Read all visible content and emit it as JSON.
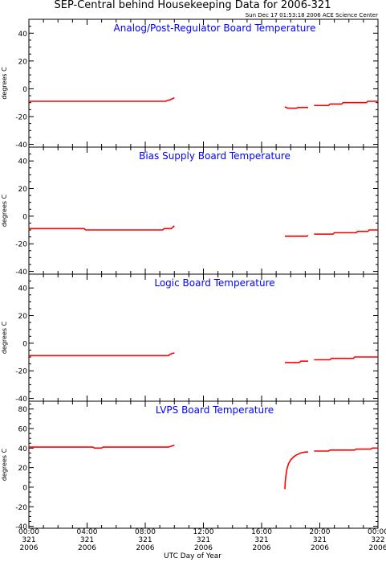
{
  "title": "SEP-Central behind Housekeeping Data for 2006-321",
  "timestamp": "Sun Dec 17 01:53:18 2006 ACE Science Center",
  "xlabel": "UTC Day of Year",
  "colors": {
    "trace": "#ff0000",
    "panel_title": "#0000ff",
    "axis": "#000000"
  },
  "x_ticks": [
    {
      "hour": 0,
      "l1": "00:00",
      "l2": "321",
      "l3": "2006"
    },
    {
      "hour": 4,
      "l1": "04:00",
      "l2": "321",
      "l3": "2006"
    },
    {
      "hour": 8,
      "l1": "08:00",
      "l2": "321",
      "l3": "2006"
    },
    {
      "hour": 12,
      "l1": "12:00",
      "l2": "321",
      "l3": "2006"
    },
    {
      "hour": 16,
      "l1": "16:00",
      "l2": "321",
      "l3": "2006"
    },
    {
      "hour": 20,
      "l1": "20:00",
      "l2": "321",
      "l3": "2006"
    },
    {
      "hour": 24,
      "l1": "00:00",
      "l2": "322",
      "l3": "2006"
    }
  ],
  "chart_data": [
    {
      "type": "line",
      "title": "Analog/Post-Regulator Board Temperature",
      "ylabel": "degrees C",
      "xlim": [
        0,
        24
      ],
      "ylim": [
        -42,
        50
      ],
      "yticks": [
        -40,
        -20,
        0,
        20,
        40
      ],
      "series": [
        {
          "segments": [
            [
              [
                0,
                -9
              ],
              [
                9.4,
                -9
              ],
              [
                9.5,
                -8.5
              ],
              [
                9.7,
                -8
              ],
              [
                9.9,
                -7
              ],
              [
                10.0,
                -6.5
              ]
            ],
            [
              [
                17.6,
                -13
              ],
              [
                17.8,
                -14
              ],
              [
                18.4,
                -14
              ],
              [
                18.5,
                -13.5
              ],
              [
                19.2,
                -13.5
              ]
            ],
            [
              [
                19.6,
                -12
              ],
              [
                20.6,
                -12
              ],
              [
                20.7,
                -11
              ],
              [
                21.5,
                -11
              ],
              [
                21.6,
                -10
              ],
              [
                23.2,
                -10
              ],
              [
                23.3,
                -9
              ],
              [
                24,
                -9
              ]
            ]
          ]
        }
      ]
    },
    {
      "type": "line",
      "title": "Bias Supply Board Temperature",
      "ylabel": "degrees C",
      "xlim": [
        0,
        24
      ],
      "ylim": [
        -42,
        50
      ],
      "yticks": [
        -40,
        -20,
        0,
        20,
        40
      ],
      "series": [
        {
          "segments": [
            [
              [
                0,
                -9
              ],
              [
                3.8,
                -9
              ],
              [
                3.9,
                -10
              ],
              [
                9.2,
                -10
              ],
              [
                9.3,
                -9
              ],
              [
                9.8,
                -9
              ],
              [
                9.9,
                -8
              ],
              [
                10.0,
                -7
              ]
            ],
            [
              [
                17.6,
                -14.5
              ],
              [
                19.1,
                -14.5
              ],
              [
                19.2,
                -14
              ]
            ],
            [
              [
                19.6,
                -13
              ],
              [
                20.9,
                -13
              ],
              [
                21.0,
                -12
              ],
              [
                22.5,
                -12
              ],
              [
                22.6,
                -11
              ],
              [
                23.3,
                -11
              ],
              [
                23.4,
                -10
              ],
              [
                24,
                -10
              ]
            ]
          ]
        }
      ]
    },
    {
      "type": "line",
      "title": "Logic Board Temperature",
      "ylabel": "degrees C",
      "xlim": [
        0,
        24
      ],
      "ylim": [
        -42,
        50
      ],
      "yticks": [
        -40,
        -20,
        0,
        20,
        40
      ],
      "series": [
        {
          "segments": [
            [
              [
                0,
                -9
              ],
              [
                9.6,
                -9
              ],
              [
                9.7,
                -8
              ],
              [
                10.0,
                -7
              ]
            ],
            [
              [
                17.6,
                -14
              ],
              [
                18.6,
                -14
              ],
              [
                18.7,
                -13
              ],
              [
                19.2,
                -13
              ]
            ],
            [
              [
                19.6,
                -12
              ],
              [
                20.7,
                -12
              ],
              [
                20.8,
                -11
              ],
              [
                22.3,
                -11
              ],
              [
                22.4,
                -10
              ],
              [
                24,
                -10
              ]
            ]
          ]
        }
      ]
    },
    {
      "type": "line",
      "title": "LVPS Board Temperature",
      "ylabel": "degrees C",
      "xlim": [
        0,
        24
      ],
      "ylim": [
        -42,
        88
      ],
      "yticks": [
        -40,
        -20,
        0,
        20,
        40,
        60,
        80
      ],
      "series": [
        {
          "segments": [
            [
              [
                0,
                41
              ],
              [
                4.4,
                41
              ],
              [
                4.5,
                40
              ],
              [
                5.0,
                40
              ],
              [
                5.1,
                41
              ],
              [
                9.6,
                41
              ],
              [
                9.8,
                42
              ],
              [
                10.0,
                43
              ]
            ],
            [
              [
                17.6,
                -2
              ],
              [
                17.62,
                5
              ],
              [
                17.67,
                12
              ],
              [
                17.75,
                19
              ],
              [
                17.85,
                24
              ],
              [
                18.0,
                28
              ],
              [
                18.2,
                31
              ],
              [
                18.4,
                33
              ],
              [
                18.7,
                35
              ],
              [
                19.0,
                36
              ],
              [
                19.2,
                36
              ]
            ],
            [
              [
                19.6,
                37
              ],
              [
                20.6,
                37
              ],
              [
                20.7,
                38
              ],
              [
                22.4,
                38
              ],
              [
                22.5,
                39
              ],
              [
                23.5,
                39
              ],
              [
                23.6,
                40
              ],
              [
                24,
                40
              ]
            ]
          ]
        }
      ]
    }
  ]
}
